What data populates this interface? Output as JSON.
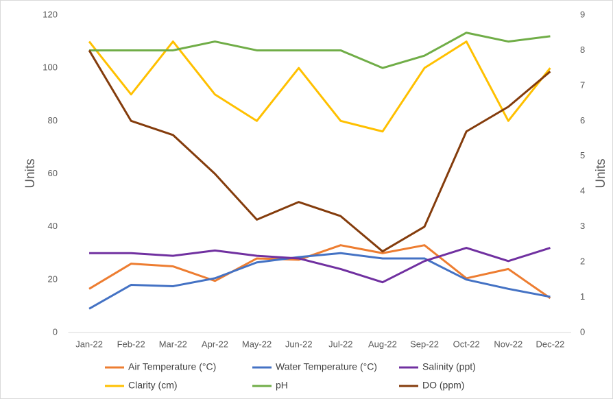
{
  "chart_data": {
    "type": "line",
    "categories": [
      "Jan-22",
      "Feb-22",
      "Mar-22",
      "Apr-22",
      "May-22",
      "Jun-22",
      "Jul-22",
      "Aug-22",
      "Sep-22",
      "Oct-22",
      "Nov-22",
      "Dec-22"
    ],
    "y_label": "Units",
    "y2_label": "Units",
    "ylim": [
      0,
      120
    ],
    "yticks": [
      0,
      20,
      40,
      60,
      80,
      100,
      120
    ],
    "y2lim": [
      0,
      9
    ],
    "y2ticks": [
      0,
      1,
      2,
      3,
      4,
      5,
      6,
      7,
      8,
      9
    ],
    "grid": false,
    "legend": "bottom",
    "series": [
      {
        "name": "Air Temperature (°C)",
        "color": "#ED7D31",
        "values": [
          16.5,
          26,
          25,
          19.5,
          28,
          27.5,
          33,
          30,
          33,
          20.5,
          24,
          13
        ]
      },
      {
        "name": "Water Temperature (°C)",
        "color": "#4472C4",
        "values": [
          9,
          18,
          17.5,
          20.5,
          26.5,
          28.5,
          30,
          28,
          28,
          20,
          16.5,
          13.5
        ]
      },
      {
        "name": "Salinity (ppt)",
        "color": "#7030A0",
        "values": [
          30,
          30,
          29,
          31,
          29,
          28,
          24,
          19,
          27,
          32,
          27,
          32
        ]
      },
      {
        "name": "Clarity (cm)",
        "color": "#FFC000",
        "values": [
          110,
          90,
          110,
          90,
          80,
          100,
          80,
          76,
          100,
          110,
          80,
          100
        ]
      },
      {
        "name": "pH",
        "color": "#70AD47",
        "axis": "y2",
        "values": [
          8,
          8,
          8,
          8.25,
          8,
          8,
          8,
          7.5,
          7.85,
          8.5,
          8.25,
          8.4
        ]
      },
      {
        "name": "DO (ppm)",
        "color": "#843C0C",
        "axis": "y2",
        "values": [
          8,
          6,
          5.6,
          4.5,
          3.2,
          3.7,
          3.3,
          2.3,
          3,
          5.7,
          6.4,
          7.4
        ]
      }
    ]
  }
}
